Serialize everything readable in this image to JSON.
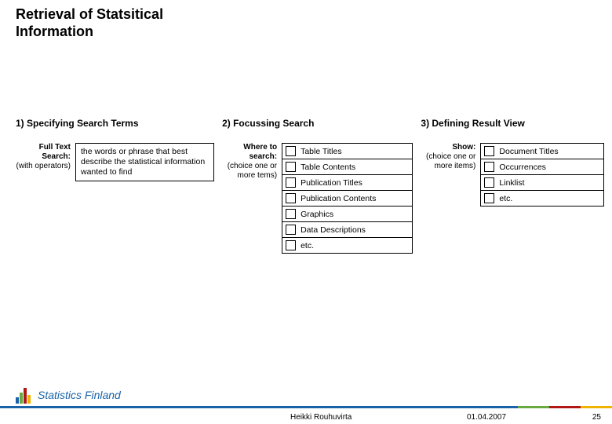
{
  "title": "Retrieval of Statsitical Information",
  "columns": {
    "c1": {
      "header": "1) Specifying Search Terms",
      "label_bold": "Full Text Search:",
      "label_note": "(with operators)",
      "input_text": "the words or phrase that best describe the statistical information wanted to find"
    },
    "c2": {
      "header": "2) Focussing Search",
      "label_bold": "Where to search:",
      "label_note": "(choice one or more   tems)",
      "options": [
        "Table Titles",
        "Table Contents",
        "Publication Titles",
        "Publication Contents",
        "Graphics",
        "Data Descriptions",
        "etc."
      ]
    },
    "c3": {
      "header": "3) Defining Result View",
      "label_bold": "Show:",
      "label_note": "(choice one or more  items)",
      "options": [
        "Document Titles",
        "Occurrences",
        "Linklist",
        "etc."
      ]
    }
  },
  "footer": {
    "author": "Heikki Rouhuvirta",
    "date": "01.04.2007",
    "page": "25",
    "brand": "Statistics Finland"
  },
  "colors": {
    "blue": "#1a63a8",
    "green": "#6aa842",
    "red": "#b01818",
    "yellow": "#f0b400"
  }
}
